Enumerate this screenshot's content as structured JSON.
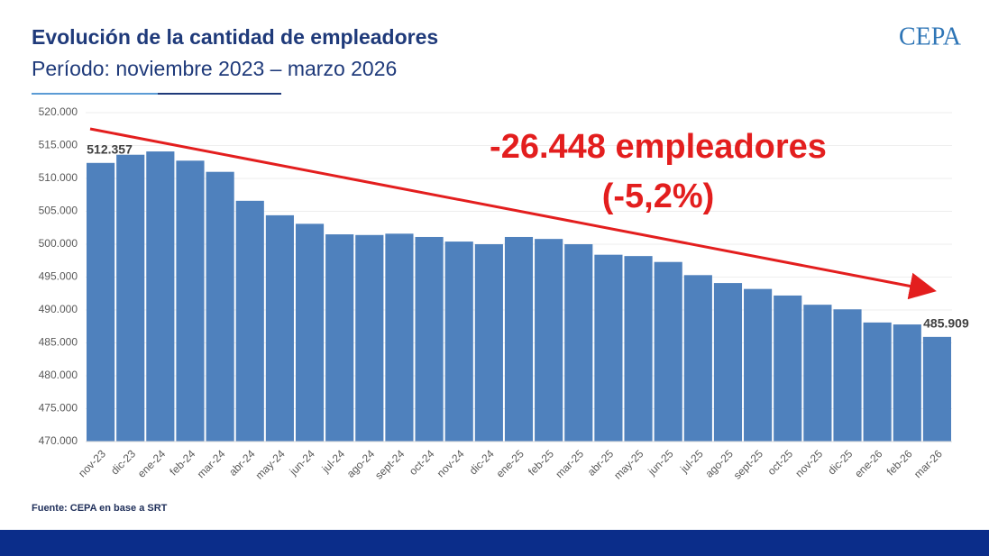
{
  "chart_data": {
    "type": "bar",
    "title": "Evolución de la cantidad de empleadores",
    "subtitle": "Período: noviembre 2023 – marzo 2026",
    "logo": "CEPA",
    "annotations": [
      "-26.448 empleadores",
      "(-5,2%)"
    ],
    "source": "Fuente: CEPA en base a SRT",
    "categories": [
      "nov-23",
      "dic-23",
      "ene-24",
      "feb-24",
      "mar-24",
      "abr-24",
      "may-24",
      "jun-24",
      "jul-24",
      "ago-24",
      "sept-24",
      "oct-24",
      "nov-24",
      "dic-24",
      "ene-25",
      "feb-25",
      "mar-25",
      "abr-25",
      "may-25",
      "jun-25",
      "jul-25",
      "ago-25",
      "sept-25",
      "oct-25",
      "nov-25",
      "dic-25",
      "ene-26",
      "feb-26",
      "mar-26"
    ],
    "values": [
      512357,
      513600,
      514100,
      512700,
      511000,
      506600,
      504400,
      503100,
      501500,
      501400,
      501600,
      501100,
      500400,
      500000,
      501100,
      500800,
      500000,
      498400,
      498200,
      497300,
      495300,
      494100,
      493200,
      492200,
      490800,
      490100,
      488100,
      487800,
      485909
    ],
    "value_labels": [
      "512.357",
      null,
      null,
      null,
      null,
      null,
      null,
      null,
      null,
      null,
      null,
      null,
      null,
      null,
      null,
      null,
      null,
      null,
      null,
      null,
      null,
      null,
      null,
      null,
      null,
      null,
      null,
      null,
      "485.909"
    ],
    "color": "#4f81bd",
    "ylim": [
      470000,
      520000
    ],
    "yticks": [
      {
        "value": 470000,
        "label": "470.000"
      },
      {
        "value": 475000,
        "label": "475.000"
      },
      {
        "value": 480000,
        "label": "480.000"
      },
      {
        "value": 485000,
        "label": "485.000"
      },
      {
        "value": 490000,
        "label": "490.000"
      },
      {
        "value": 495000,
        "label": "495.000"
      },
      {
        "value": 500000,
        "label": "500.000"
      },
      {
        "value": 505000,
        "label": "505.000"
      },
      {
        "value": 510000,
        "label": "510.000"
      },
      {
        "value": 515000,
        "label": "515.000"
      },
      {
        "value": 520000,
        "label": "520.000"
      }
    ],
    "grid": true
  }
}
